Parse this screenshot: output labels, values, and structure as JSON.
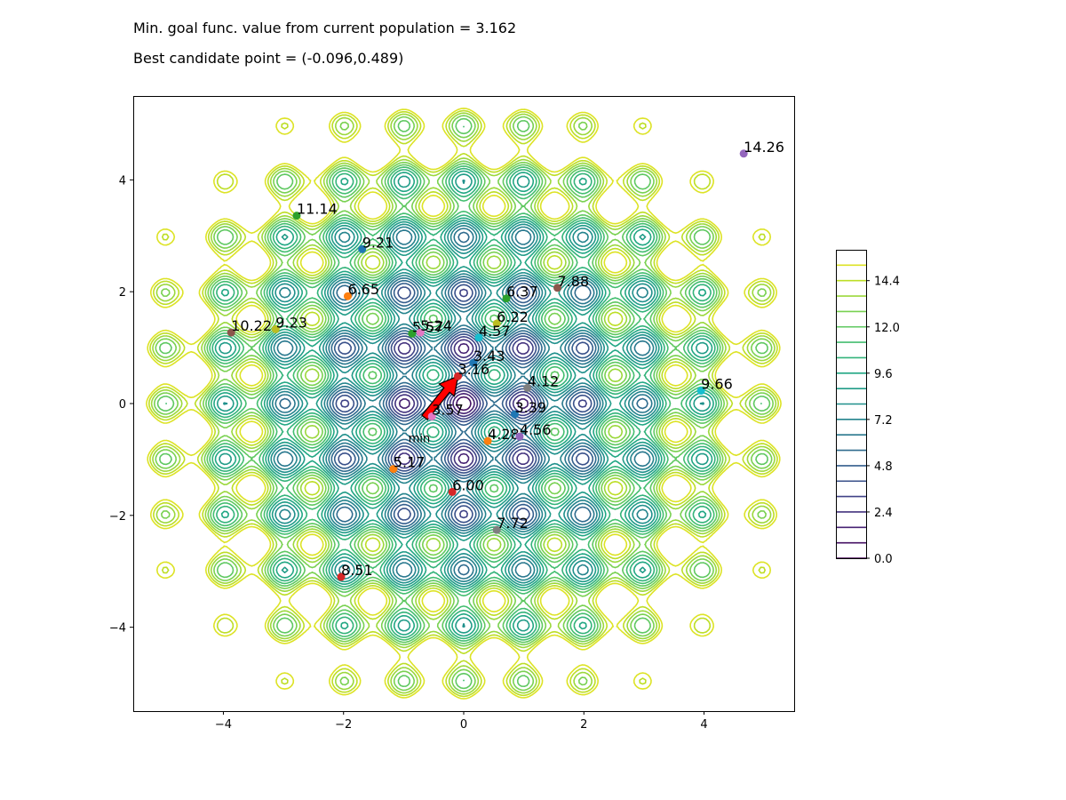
{
  "header": {
    "line1": "Min. goal func. value from current population = 3.162",
    "line2": "Best candidate point = (-0.096,0.489)"
  },
  "chart_data": {
    "type": "contour",
    "function": "rastrigin-like 2D",
    "xlim": [
      -5.5,
      5.5
    ],
    "ylim": [
      -5.5,
      5.5
    ],
    "x_ticks": [
      -4,
      -2,
      0,
      2,
      4
    ],
    "y_ticks": [
      -4,
      -2,
      0,
      2,
      4
    ],
    "contour_levels": [
      0.0,
      0.8,
      1.6,
      2.4,
      3.2,
      4.0,
      4.8,
      5.6,
      6.4,
      7.2,
      8.0,
      8.8,
      9.6,
      10.4,
      11.2,
      12.0,
      12.8,
      13.6,
      14.4,
      15.2
    ],
    "colorbar": {
      "ticks": [
        0.0,
        2.4,
        4.8,
        7.2,
        9.6,
        12.0,
        14.4
      ],
      "tick_labels": [
        "0.0",
        "2.4",
        "4.8",
        "7.2",
        "9.6",
        "12.0",
        "14.4"
      ],
      "vmin": 0.0,
      "vmax": 16.0
    },
    "arrow": {
      "from": [
        -0.65,
        -0.25
      ],
      "to": [
        -0.096,
        0.489
      ],
      "label": "min",
      "color": "#ff0000"
    },
    "points": [
      {
        "x": 4.66,
        "y": 4.47,
        "label": "14.26",
        "color": "#9467bd"
      },
      {
        "x": -2.78,
        "y": 3.36,
        "label": "11.14",
        "color": "#2ca02c"
      },
      {
        "x": -1.69,
        "y": 2.76,
        "label": "9.21",
        "color": "#1f77b4"
      },
      {
        "x": -1.93,
        "y": 1.92,
        "label": "6.65",
        "color": "#ff7f0e"
      },
      {
        "x": 0.71,
        "y": 1.88,
        "label": "6.37",
        "color": "#2ca02c"
      },
      {
        "x": 1.56,
        "y": 2.07,
        "label": "7.88",
        "color": "#8c564b"
      },
      {
        "x": 0.55,
        "y": 1.43,
        "label": "6.22",
        "color": "#bcbd22"
      },
      {
        "x": -3.87,
        "y": 1.27,
        "label": "10.22",
        "color": "#8c564b"
      },
      {
        "x": -3.13,
        "y": 1.33,
        "label": "9.23",
        "color": "#bcbd22"
      },
      {
        "x": -0.86,
        "y": 1.25,
        "label": "5.57",
        "color": "#2ca02c"
      },
      {
        "x": -0.72,
        "y": 1.27,
        "label": "5.24",
        "color": "#e377c2"
      },
      {
        "x": 0.25,
        "y": 1.18,
        "label": "4.57",
        "color": "#17becf"
      },
      {
        "x": 0.16,
        "y": 0.73,
        "label": "3.43",
        "color": "#1f77b4"
      },
      {
        "x": -0.096,
        "y": 0.489,
        "label": "3.16",
        "color": "#d62728"
      },
      {
        "x": 1.06,
        "y": 0.28,
        "label": "4.12",
        "color": "#7f7f7f"
      },
      {
        "x": 3.95,
        "y": 0.23,
        "label": "9.66",
        "color": "#17becf"
      },
      {
        "x": -0.53,
        "y": -0.23,
        "label": "3.57",
        "color": "#e377c2"
      },
      {
        "x": 0.85,
        "y": -0.19,
        "label": "3.39",
        "color": "#1f77b4"
      },
      {
        "x": 0.4,
        "y": -0.67,
        "label": "4.28",
        "color": "#ff7f0e"
      },
      {
        "x": 0.93,
        "y": -0.59,
        "label": "4.56",
        "color": "#9467bd"
      },
      {
        "x": -1.17,
        "y": -1.17,
        "label": "5.17",
        "color": "#ff7f0e"
      },
      {
        "x": -0.19,
        "y": -1.58,
        "label": "6.00",
        "color": "#d62728"
      },
      {
        "x": 0.55,
        "y": -2.26,
        "label": "7.72",
        "color": "#7f7f7f"
      },
      {
        "x": -2.04,
        "y": -3.1,
        "label": "8.51",
        "color": "#d62728"
      }
    ]
  }
}
